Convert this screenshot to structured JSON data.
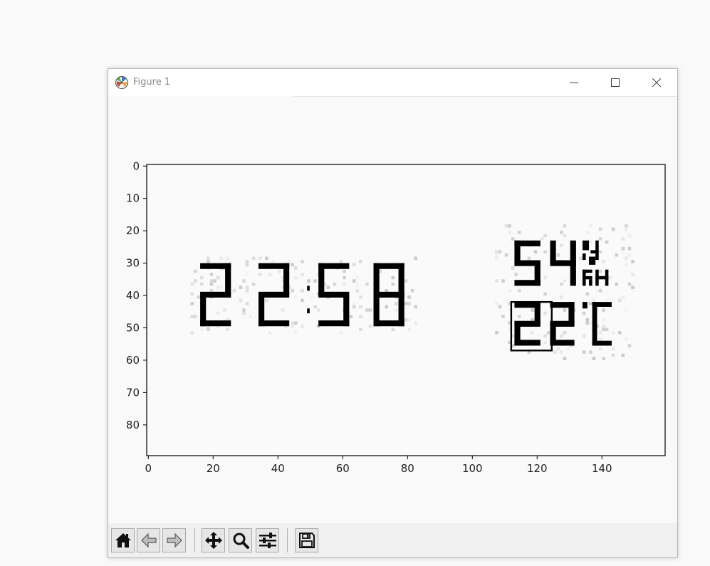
{
  "window": {
    "title": "Figure 1",
    "controls": [
      "minimize-icon",
      "maximize-icon",
      "close-icon"
    ]
  },
  "toolbar": {
    "buttons": [
      {
        "name": "home-button",
        "icon": "home-icon"
      },
      {
        "name": "back-button",
        "icon": "back-arrow-icon"
      },
      {
        "name": "forward-button",
        "icon": "forward-arrow-icon"
      },
      {
        "name": "pan-button",
        "icon": "move-icon"
      },
      {
        "name": "zoom-button",
        "icon": "magnifier-icon"
      },
      {
        "name": "configure-subplots-button",
        "icon": "sliders-icon"
      },
      {
        "name": "save-button",
        "icon": "floppy-disk-icon"
      }
    ]
  },
  "chart_data": {
    "type": "image",
    "description_text": "",
    "xlim": [
      -0.5,
      159.5
    ],
    "ylim": [
      89.5,
      -0.5
    ],
    "xticks": [
      0,
      20,
      40,
      60,
      80,
      100,
      120,
      140
    ],
    "yticks": [
      0,
      10,
      20,
      30,
      40,
      50,
      60,
      70,
      80
    ],
    "image_content": {
      "time_digits": "22:58",
      "humidity_digits": "54",
      "humidity_unit": "%RH",
      "temperature_digits": "22",
      "temperature_unit": "°C"
    },
    "highlight_box": {
      "x0": 112,
      "x1": 124.5,
      "y0": 42,
      "y1": 57
    },
    "colormap": "gray",
    "grid": false
  }
}
